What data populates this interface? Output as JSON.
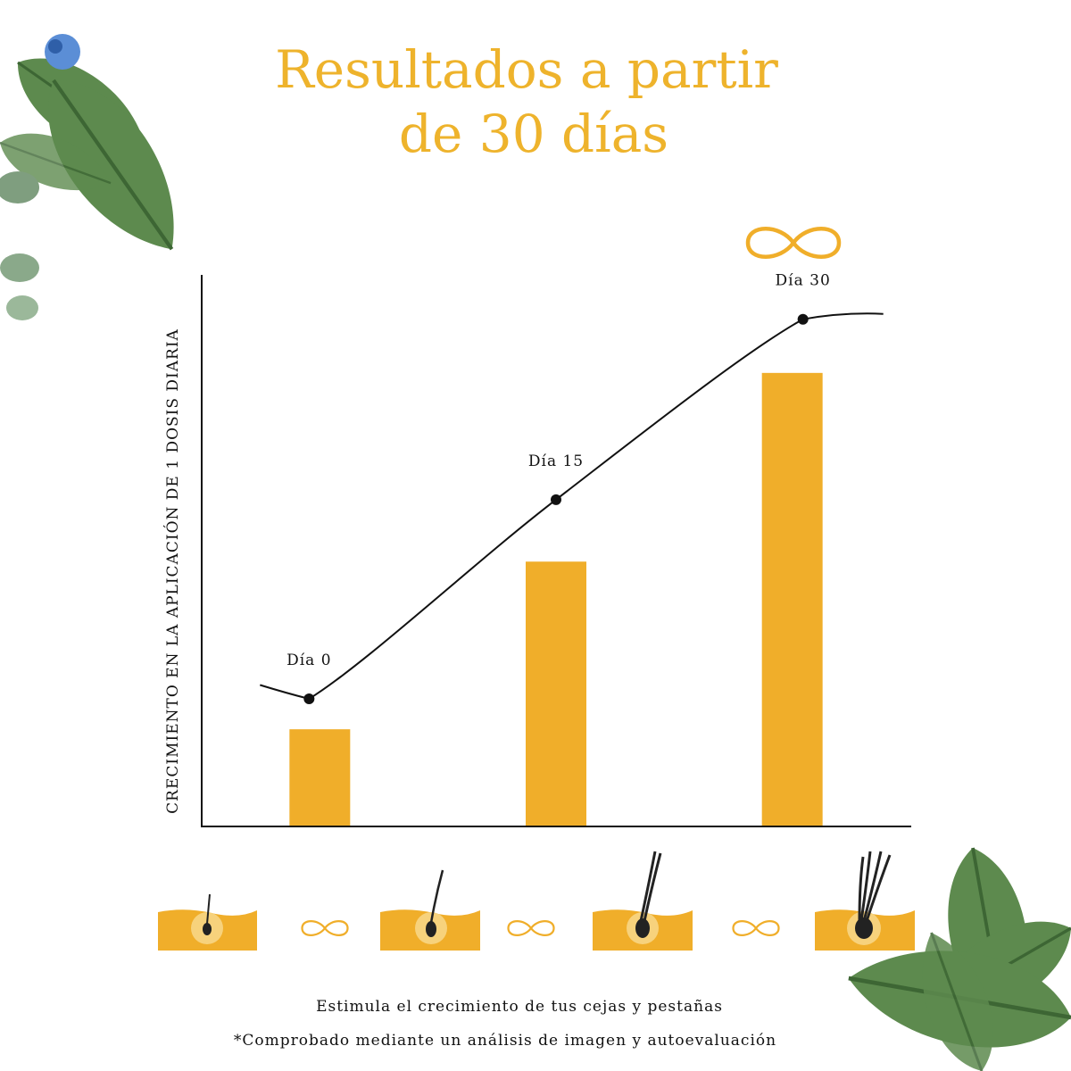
{
  "chart_data": {
    "type": "bar",
    "title": [
      "Resultados a partir",
      "de 30 días"
    ],
    "y_label": "CRECIMIENTO EN LA APLICACIÓN DE 1 DOSIS DIARIA",
    "categories": [
      "Día 0",
      "Día 15",
      "Día 30"
    ],
    "ylim": [
      0,
      100
    ],
    "series": [
      {
        "type": "bar",
        "color": "#f0ae2a",
        "values": [
          17.4,
          47.7,
          81.8
        ]
      },
      {
        "type": "line",
        "color": "#111111",
        "values": [
          22.9,
          58.9,
          91.5
        ]
      }
    ],
    "notes": [
      "Estimula el crecimiento de tus cejas y pestañas",
      "*Comprobado mediante un análisis de imagen y autoevaluación"
    ]
  }
}
